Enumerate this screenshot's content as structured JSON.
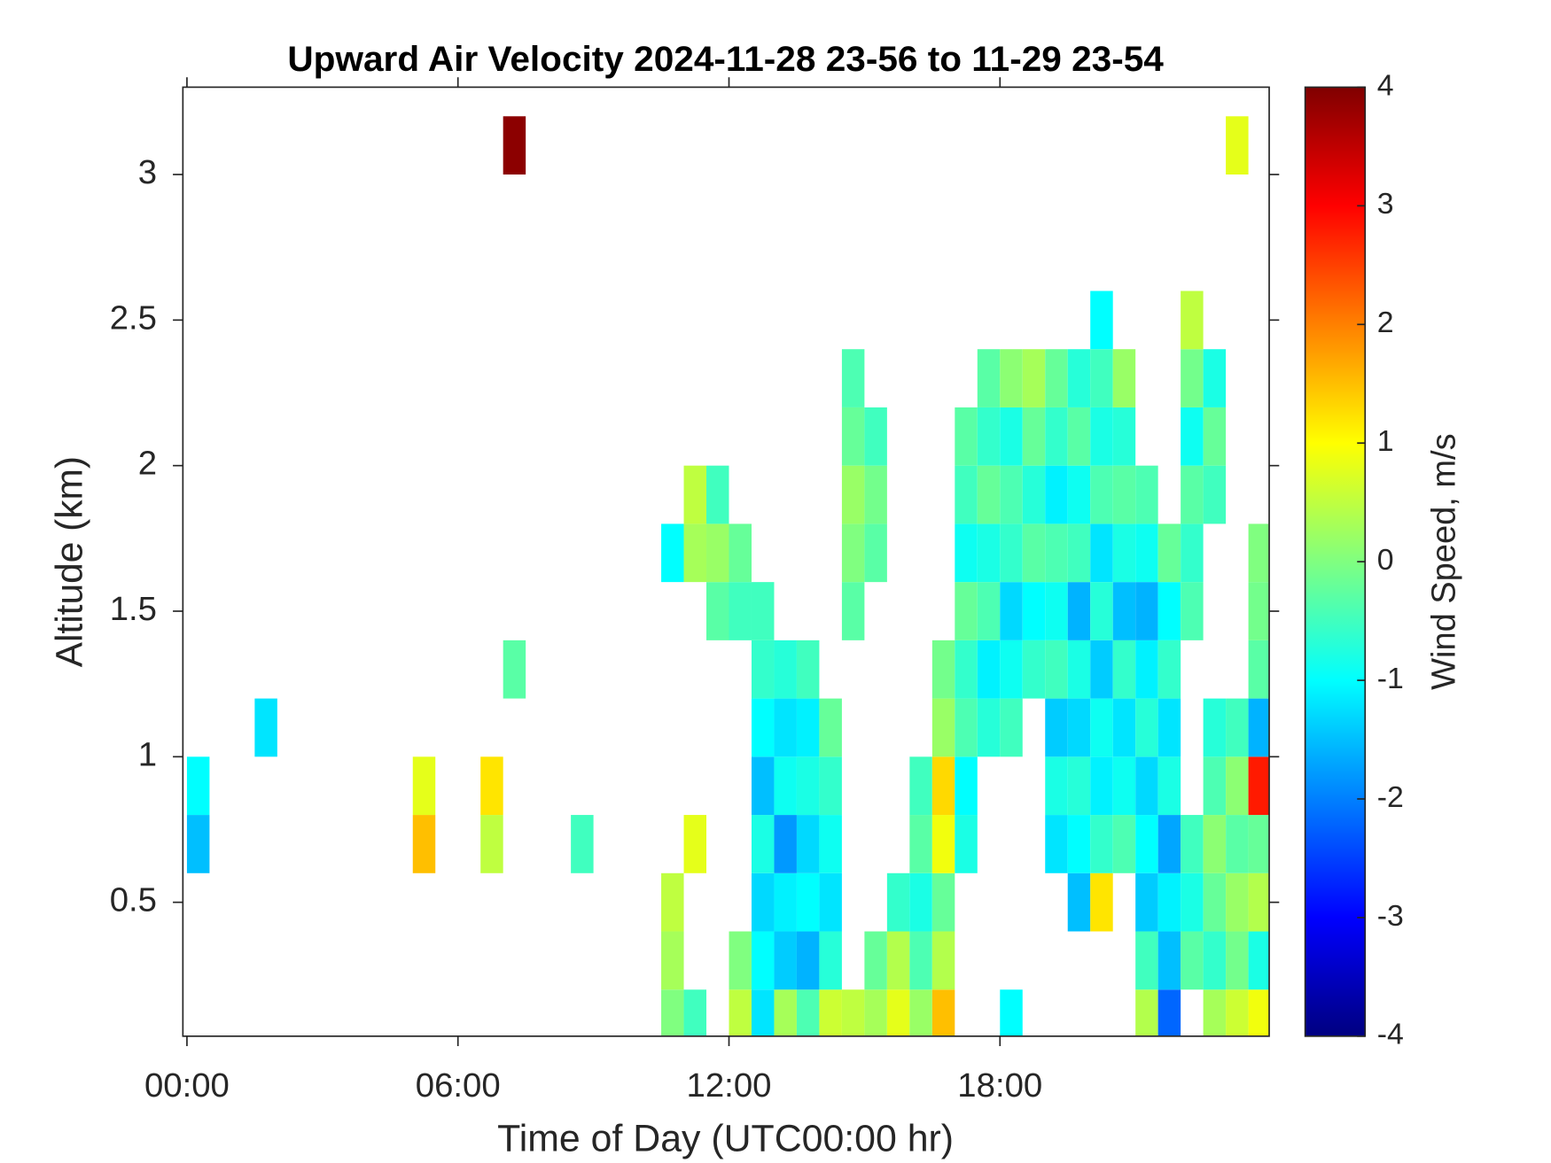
{
  "chart_data": {
    "type": "heatmap",
    "title": "Upward Air Velocity 2024-11-28 23-56 to 11-29 23-54",
    "x_label": "Time of Day (UTC00:00 hr)",
    "y_label": "Altitude (km)",
    "colorbar_label": "Wind Speed, m/s",
    "colormap": "jet",
    "xlim": [
      -0.09,
      23.96
    ],
    "ylim": [
      0.04,
      3.3
    ],
    "clim": [
      -4,
      4
    ],
    "xticks": [
      {
        "value": 0,
        "label": "00:00"
      },
      {
        "value": 6,
        "label": "06:00"
      },
      {
        "value": 12,
        "label": "12:00"
      },
      {
        "value": 18,
        "label": "18:00"
      }
    ],
    "yticks": [
      0.5,
      1,
      1.5,
      2,
      2.5,
      3
    ],
    "colorbar_ticks": [
      -4,
      -3,
      -2,
      -1,
      0,
      1,
      2,
      3,
      4
    ],
    "x": [
      0.25,
      0.25,
      1.75,
      5.25,
      5.25,
      6.75,
      6.75,
      7.25,
      7.25,
      8.75,
      10.75,
      10.75,
      10.75,
      10.75,
      11.25,
      11.25,
      11.25,
      11.25,
      11.75,
      11.75,
      11.75,
      12.25,
      12.25,
      12.25,
      12.25,
      12.75,
      12.75,
      12.75,
      12.75,
      12.75,
      12.75,
      12.75,
      12.75,
      13.25,
      13.25,
      13.25,
      13.25,
      13.25,
      13.25,
      13.25,
      13.75,
      13.75,
      13.75,
      13.75,
      13.75,
      13.75,
      13.75,
      14.25,
      14.25,
      14.25,
      14.25,
      14.25,
      14.25,
      14.75,
      14.75,
      14.75,
      14.75,
      14.75,
      14.75,
      15.25,
      15.25,
      15.25,
      15.25,
      15.25,
      15.75,
      15.75,
      15.75,
      16.25,
      16.25,
      16.25,
      16.25,
      16.25,
      16.75,
      16.75,
      16.75,
      16.75,
      16.75,
      16.75,
      16.75,
      17.25,
      17.25,
      17.25,
      17.25,
      17.25,
      17.25,
      17.25,
      17.25,
      17.75,
      17.75,
      17.75,
      17.75,
      17.75,
      17.75,
      17.75,
      18.25,
      18.25,
      18.25,
      18.25,
      18.25,
      18.25,
      18.25,
      18.25,
      18.75,
      18.75,
      18.75,
      18.75,
      18.75,
      18.75,
      19.25,
      19.25,
      19.25,
      19.25,
      19.25,
      19.25,
      19.25,
      19.25,
      19.25,
      19.75,
      19.75,
      19.75,
      19.75,
      19.75,
      19.75,
      19.75,
      19.75,
      19.75,
      19.75,
      20.25,
      20.25,
      20.25,
      20.25,
      20.25,
      20.25,
      20.25,
      20.25,
      20.25,
      20.25,
      20.25,
      20.75,
      20.75,
      20.75,
      20.75,
      20.75,
      20.75,
      20.75,
      20.75,
      20.75,
      21.25,
      21.25,
      21.25,
      21.25,
      21.25,
      21.25,
      21.25,
      21.25,
      21.25,
      21.25,
      21.75,
      21.75,
      21.75,
      21.75,
      21.75,
      21.75,
      21.75,
      21.75,
      21.75,
      22.25,
      22.25,
      22.25,
      22.25,
      22.25,
      22.25,
      22.25,
      22.25,
      22.25,
      22.75,
      22.75,
      22.75,
      22.75,
      22.75,
      22.75,
      22.75,
      22.75,
      22.75,
      23.25,
      23.25,
      23.25,
      23.25,
      23.25,
      23.25,
      23.25,
      23.75,
      23.75,
      23.75,
      23.75,
      23.75,
      23.75,
      23.75,
      23.75,
      23.75
    ],
    "y": [
      0.7,
      0.9,
      1.1,
      0.7,
      0.9,
      0.7,
      0.9,
      1.3,
      3.1,
      0.7,
      0.1,
      0.3,
      0.5,
      1.7,
      0.1,
      0.7,
      1.7,
      1.9,
      1.5,
      1.7,
      1.9,
      0.1,
      0.3,
      1.5,
      1.7,
      0.1,
      0.3,
      0.5,
      0.7,
      0.9,
      1.1,
      1.3,
      1.5,
      0.1,
      0.3,
      0.5,
      0.7,
      0.9,
      1.1,
      1.3,
      0.1,
      0.3,
      0.5,
      0.7,
      0.9,
      1.1,
      1.3,
      0.1,
      0.3,
      0.5,
      0.7,
      0.9,
      1.1,
      0.1,
      1.5,
      1.7,
      1.9,
      2.1,
      2.3,
      0.1,
      0.3,
      1.7,
      1.9,
      2.1,
      0.1,
      0.3,
      0.5,
      0.1,
      0.3,
      0.5,
      0.7,
      0.9,
      0.1,
      0.3,
      0.5,
      0.7,
      0.9,
      1.1,
      1.3,
      0.7,
      0.9,
      1.1,
      1.3,
      1.5,
      1.7,
      1.9,
      2.1,
      1.1,
      1.3,
      1.5,
      1.7,
      1.9,
      2.1,
      2.3,
      0.1,
      1.1,
      1.3,
      1.5,
      1.7,
      1.9,
      2.1,
      2.3,
      1.3,
      1.5,
      1.7,
      1.9,
      2.1,
      2.3,
      0.7,
      0.9,
      1.1,
      1.3,
      1.5,
      1.7,
      1.9,
      2.1,
      2.3,
      0.5,
      0.7,
      0.9,
      1.1,
      1.3,
      1.5,
      1.7,
      1.9,
      2.1,
      2.3,
      0.5,
      0.7,
      0.9,
      1.1,
      1.3,
      1.5,
      1.7,
      1.9,
      2.1,
      2.3,
      2.5,
      0.7,
      0.9,
      1.1,
      1.3,
      1.5,
      1.7,
      1.9,
      2.1,
      2.3,
      0.1,
      0.3,
      0.5,
      0.7,
      0.9,
      1.1,
      1.3,
      1.5,
      1.7,
      1.9,
      0.1,
      0.3,
      0.5,
      0.7,
      0.9,
      1.1,
      1.3,
      1.5,
      1.7,
      0.3,
      0.5,
      0.7,
      1.5,
      1.7,
      1.9,
      2.1,
      2.3,
      2.5,
      0.1,
      0.3,
      0.5,
      0.7,
      0.9,
      1.1,
      1.9,
      2.1,
      2.3,
      0.1,
      0.3,
      0.5,
      0.7,
      0.9,
      1.1,
      3.1,
      0.1,
      0.3,
      0.5,
      0.7,
      0.9,
      1.1,
      1.3,
      1.5,
      1.7
    ],
    "values": [
      -1.5,
      -1.0,
      -1.2,
      1.5,
      0.8,
      0.5,
      1.2,
      -0.3,
      3.9,
      -0.5,
      0.0,
      0.3,
      0.5,
      -1.0,
      -0.5,
      0.8,
      0.3,
      0.5,
      -0.3,
      0.2,
      -0.5,
      0.5,
      0.0,
      -0.5,
      -0.2,
      -1.2,
      -1.0,
      -1.3,
      -0.8,
      -1.5,
      -1.0,
      -0.6,
      -0.5,
      0.3,
      -1.4,
      -1.1,
      -1.8,
      -0.9,
      -1.2,
      -0.7,
      -0.4,
      -1.6,
      -1.0,
      -1.3,
      -0.8,
      -1.1,
      -0.5,
      0.6,
      -0.7,
      -1.2,
      -0.9,
      -0.6,
      -0.2,
      0.5,
      -0.3,
      0.0,
      0.2,
      -0.2,
      -0.4,
      0.3,
      -0.2,
      -0.3,
      -0.1,
      -0.5,
      0.8,
      0.4,
      -0.6,
      0.2,
      -0.4,
      -0.8,
      -0.3,
      -0.5,
      1.5,
      0.4,
      -0.2,
      0.9,
      1.3,
      0.2,
      -0.1,
      -0.8,
      -1.0,
      -0.4,
      -0.6,
      -0.2,
      -0.9,
      -0.5,
      -0.3,
      -0.7,
      -1.1,
      -0.4,
      -0.8,
      -0.2,
      -0.6,
      -0.3,
      -1.0,
      -0.5,
      -0.9,
      -1.3,
      -0.6,
      -0.4,
      -0.8,
      0.1,
      -0.6,
      -1.0,
      -0.3,
      -0.7,
      -0.2,
      0.3,
      -1.2,
      -0.8,
      -1.4,
      -0.5,
      -0.9,
      -0.4,
      -1.1,
      -0.6,
      -0.2,
      -1.5,
      -1.0,
      -0.7,
      -1.3,
      -0.8,
      -1.6,
      -0.5,
      -0.9,
      -0.3,
      -0.7,
      1.2,
      -0.6,
      -1.1,
      -0.9,
      -1.4,
      -0.7,
      -1.2,
      -0.4,
      -0.8,
      -0.5,
      -1.0,
      -0.4,
      -0.9,
      -1.2,
      -0.6,
      -1.5,
      -0.8,
      -0.3,
      -0.7,
      0.2,
      0.4,
      -0.5,
      -1.4,
      -1.0,
      -1.3,
      -0.7,
      -1.1,
      -1.6,
      -0.9,
      -0.4,
      -2.2,
      -1.5,
      -1.1,
      -1.7,
      -0.8,
      -1.2,
      -0.6,
      -1.0,
      -0.2,
      -0.3,
      -0.8,
      -0.5,
      -0.4,
      -0.6,
      -0.3,
      -0.9,
      -0.1,
      0.5,
      0.3,
      -0.6,
      -0.2,
      0.1,
      -0.4,
      -0.7,
      -0.5,
      -0.2,
      -0.8,
      0.6,
      -0.1,
      0.2,
      -0.3,
      0.1,
      -0.5,
      0.8,
      0.9,
      -0.8,
      0.4,
      -0.2,
      2.8,
      -1.6,
      -0.3,
      -0.1,
      0.0
    ]
  }
}
